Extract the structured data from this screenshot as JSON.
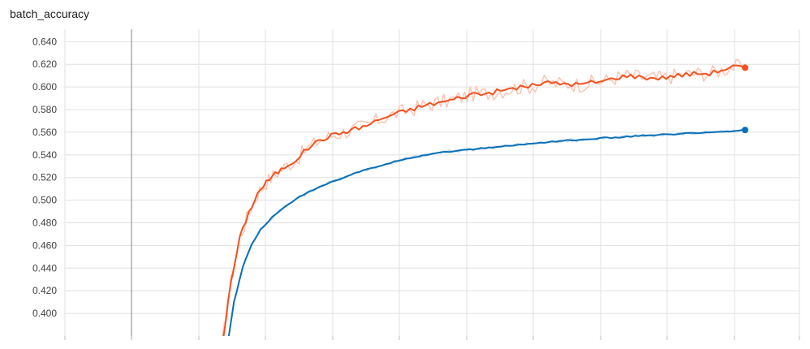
{
  "chart_title": "batch_accuracy",
  "colors": {
    "orange": "#f4511e",
    "orange_raw": "#fbc6b4",
    "blue": "#0b6fb8",
    "blue_raw": "#b9d5ea",
    "grid": "#e0e0e0",
    "axis_marker": "#9e9e9e"
  },
  "chart_data": {
    "type": "line",
    "title": "batch_accuracy",
    "xlabel": "",
    "ylabel": "",
    "ylim": [
      0.38,
      0.651
    ],
    "xlim": [
      0,
      1
    ],
    "grid": true,
    "y_ticks": [
      "0.400",
      "0.420",
      "0.440",
      "0.460",
      "0.480",
      "0.500",
      "0.520",
      "0.540",
      "0.560",
      "0.580",
      "0.600",
      "0.620",
      "0.640"
    ],
    "series": [
      {
        "color": "#f4511e",
        "smoothed": [
          [
            0.115,
            0.372
          ],
          [
            0.13,
            0.428
          ],
          [
            0.145,
            0.467
          ],
          [
            0.16,
            0.489
          ],
          [
            0.175,
            0.506
          ],
          [
            0.19,
            0.516
          ],
          [
            0.205,
            0.523
          ],
          [
            0.22,
            0.529
          ],
          [
            0.24,
            0.536
          ],
          [
            0.26,
            0.546
          ],
          [
            0.28,
            0.553
          ],
          [
            0.3,
            0.557
          ],
          [
            0.32,
            0.56
          ],
          [
            0.34,
            0.563
          ],
          [
            0.36,
            0.566
          ],
          [
            0.38,
            0.571
          ],
          [
            0.4,
            0.575
          ],
          [
            0.42,
            0.578
          ],
          [
            0.44,
            0.581
          ],
          [
            0.46,
            0.584
          ],
          [
            0.48,
            0.586
          ],
          [
            0.5,
            0.588
          ],
          [
            0.52,
            0.591
          ],
          [
            0.54,
            0.594
          ],
          [
            0.56,
            0.594
          ],
          [
            0.58,
            0.596
          ],
          [
            0.6,
            0.598
          ],
          [
            0.62,
            0.6
          ],
          [
            0.64,
            0.601
          ],
          [
            0.66,
            0.604
          ],
          [
            0.68,
            0.603
          ],
          [
            0.7,
            0.603
          ],
          [
            0.72,
            0.602
          ],
          [
            0.74,
            0.604
          ],
          [
            0.76,
            0.605
          ],
          [
            0.78,
            0.608
          ],
          [
            0.8,
            0.61
          ],
          [
            0.82,
            0.609
          ],
          [
            0.84,
            0.608
          ],
          [
            0.86,
            0.608
          ],
          [
            0.88,
            0.61
          ],
          [
            0.9,
            0.611
          ],
          [
            0.92,
            0.612
          ],
          [
            0.94,
            0.612
          ],
          [
            0.96,
            0.615
          ],
          [
            0.98,
            0.618
          ],
          [
            1.0,
            0.617
          ]
        ]
      },
      {
        "color": "#0b6fb8",
        "smoothed": [
          [
            0.122,
            0.365
          ],
          [
            0.135,
            0.41
          ],
          [
            0.15,
            0.441
          ],
          [
            0.165,
            0.461
          ],
          [
            0.18,
            0.474
          ],
          [
            0.2,
            0.485
          ],
          [
            0.22,
            0.494
          ],
          [
            0.24,
            0.501
          ],
          [
            0.26,
            0.507
          ],
          [
            0.28,
            0.512
          ],
          [
            0.3,
            0.516
          ],
          [
            0.32,
            0.52
          ],
          [
            0.34,
            0.524
          ],
          [
            0.36,
            0.527
          ],
          [
            0.38,
            0.53
          ],
          [
            0.4,
            0.533
          ],
          [
            0.42,
            0.536
          ],
          [
            0.44,
            0.538
          ],
          [
            0.46,
            0.54
          ],
          [
            0.48,
            0.542
          ],
          [
            0.5,
            0.543
          ],
          [
            0.52,
            0.544
          ],
          [
            0.54,
            0.545
          ],
          [
            0.56,
            0.546
          ],
          [
            0.58,
            0.547
          ],
          [
            0.6,
            0.548
          ],
          [
            0.62,
            0.549
          ],
          [
            0.64,
            0.55
          ],
          [
            0.66,
            0.551
          ],
          [
            0.68,
            0.552
          ],
          [
            0.7,
            0.553
          ],
          [
            0.72,
            0.553
          ],
          [
            0.74,
            0.554
          ],
          [
            0.76,
            0.555
          ],
          [
            0.78,
            0.555
          ],
          [
            0.8,
            0.556
          ],
          [
            0.82,
            0.557
          ],
          [
            0.84,
            0.557
          ],
          [
            0.86,
            0.558
          ],
          [
            0.88,
            0.558
          ],
          [
            0.9,
            0.559
          ],
          [
            0.92,
            0.559
          ],
          [
            0.94,
            0.56
          ],
          [
            0.96,
            0.56
          ],
          [
            0.98,
            0.561
          ],
          [
            1.0,
            0.562
          ]
        ]
      }
    ]
  }
}
